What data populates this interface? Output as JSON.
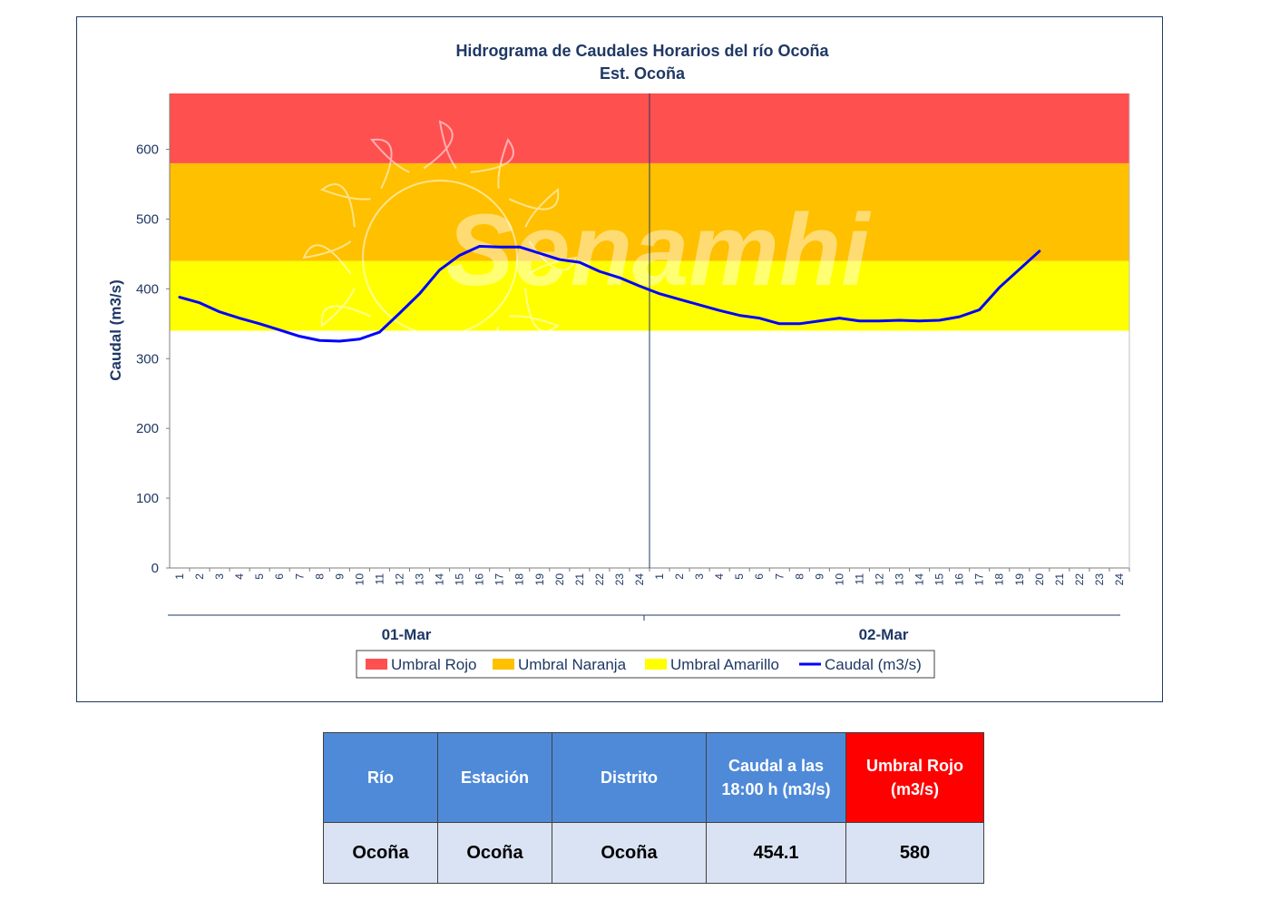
{
  "chart_data": {
    "type": "line",
    "title": "Hidrograma  de Caudales Horarios  del río Ocoña",
    "subtitle": "Est. Ocoña",
    "ylabel": "Caudal (m3/s)",
    "ylim": [
      0,
      680
    ],
    "yticks": [
      0,
      100,
      200,
      300,
      400,
      500,
      600
    ],
    "xticks": [
      "1",
      "2",
      "3",
      "4",
      "5",
      "6",
      "7",
      "8",
      "9",
      "10",
      "11",
      "12",
      "13",
      "14",
      "15",
      "16",
      "17",
      "18",
      "19",
      "20",
      "21",
      "22",
      "23",
      "24"
    ],
    "days": [
      "01-Mar",
      "02-Mar"
    ],
    "watermark": "Senamhi",
    "thresholds": [
      {
        "name": "Umbral Amarillo",
        "from": 340,
        "to": 440,
        "color": "#ffff00"
      },
      {
        "name": "Umbral Naranja",
        "from": 440,
        "to": 580,
        "color": "#ffc000"
      },
      {
        "name": "Umbral Rojo",
        "from": 580,
        "to": 680,
        "color": "#ff5050"
      }
    ],
    "series": [
      {
        "name": "Caudal (m3/s)",
        "color": "#0000ff",
        "values": [
          388,
          380,
          367,
          358,
          350,
          341,
          332,
          326,
          325,
          328,
          338,
          365,
          393,
          427,
          448,
          461,
          460,
          460,
          451,
          442,
          438,
          425,
          416,
          404,
          393,
          385,
          377,
          369,
          362,
          358,
          350,
          350,
          354,
          358,
          354,
          354,
          355,
          354,
          355,
          360,
          370,
          402,
          428,
          454
        ]
      }
    ],
    "legend": [
      "Umbral Rojo",
      "Umbral Naranja",
      "Umbral Amarillo",
      "Caudal (m3/s)"
    ],
    "legend_position": "bottom"
  },
  "table": {
    "headers": [
      "Río",
      "Estación",
      "Distrito",
      "Caudal a las 18:00 h (m3/s)",
      "Umbral Rojo (m3/s)"
    ],
    "row": [
      "Ocoña",
      "Ocoña",
      "Ocoña",
      "454.1",
      "580"
    ]
  }
}
